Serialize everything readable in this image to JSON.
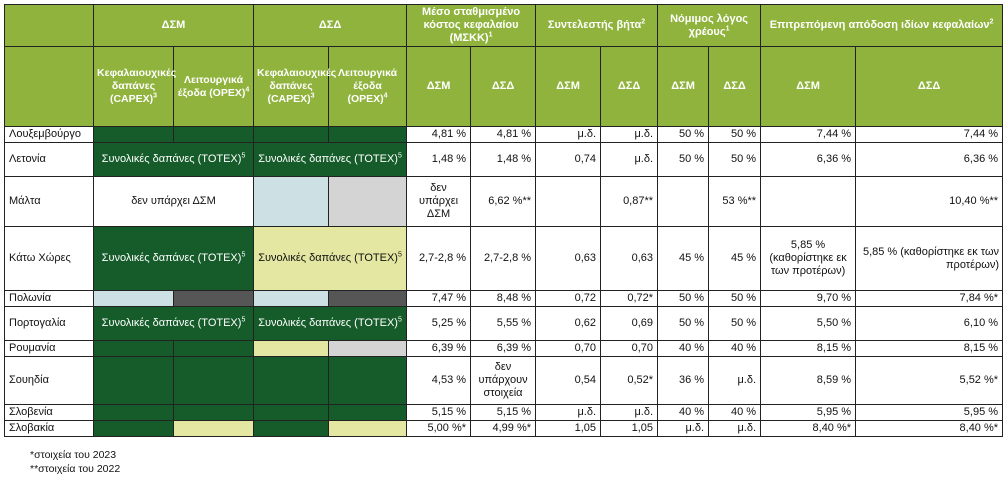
{
  "headers": {
    "dsm": "ΔΣΜ",
    "dsd": "ΔΣΔ",
    "wacc": "Μέσο σταθμισμένο κόστος κεφαλαίου (ΜΣΚΚ)",
    "wacc_sup": "1",
    "beta": "Συντελεστής βήτα",
    "beta_sup": "2",
    "gearing": "Νόμιμος λόγος χρέους",
    "gearing_sup": "1",
    "roe": "Επιτρεπόμενη απόδοση ιδίων κεφαλαίων",
    "roe_sup": "2",
    "capex": "Κεφαλαιουχικές δαπάνες (CAPEX)",
    "capex_sup": "3",
    "opex": "Λειτουργικά έξοδα (OPEX)",
    "opex_sup": "4",
    "sub_dsm": "ΔΣΜ",
    "sub_dsd": "ΔΣΔ"
  },
  "rows": [
    {
      "country": "Λουξεμβούργο",
      "wacc_dsm": "4,81 %",
      "wacc_dsd": "4,81 %",
      "beta_dsm": "μ.δ.",
      "beta_dsd": "μ.δ.",
      "gear_dsm": "50 %",
      "gear_dsd": "50 %",
      "roe_dsm": "7,44 %",
      "roe_dsd": "7,44 %"
    },
    {
      "country": "Λετονία",
      "totex_dsm": "Συνολικές δαπάνες (TOTEX)",
      "totex_dsd": "Συνολικές δαπάνες (TOTEX)",
      "wacc_dsm": "1,48 %",
      "wacc_dsd": "1,48 %",
      "beta_dsm": "0,74",
      "beta_dsd": "μ.δ.",
      "gear_dsm": "50 %",
      "gear_dsd": "50 %",
      "roe_dsm": "6,36 %",
      "roe_dsd": "6,36 %"
    },
    {
      "country": "Μάλτα",
      "no_dsm": "δεν υπάρχει ΔΣΜ",
      "wacc_dsm": "δεν υπάρχει ΔΣΜ",
      "wacc_dsd": "6,62 %**",
      "beta_dsm": "",
      "beta_dsd": "0,87**",
      "gear_dsm": "",
      "gear_dsd": "53 %**",
      "roe_dsm": "",
      "roe_dsd": "10,40 %**"
    },
    {
      "country": "Κάτω Χώρες",
      "totex_dsm": "Συνολικές δαπάνες (TOTEX)",
      "totex_dsd": "Συνολικές δαπάνες (TOTEX)",
      "wacc_dsm": "2,7-2,8 %",
      "wacc_dsd": "2,7-2,8 %",
      "beta_dsm": "0,63",
      "beta_dsd": "0,63",
      "gear_dsm": "45 %",
      "gear_dsd": "45 %",
      "roe_dsm": "5,85 % (καθορίστηκε εκ των προτέρων)",
      "roe_dsd": "5,85 % (καθορίστηκε εκ των προτέρων)"
    },
    {
      "country": "Πολωνία",
      "wacc_dsm": "7,47 %",
      "wacc_dsd": "8,48 %",
      "beta_dsm": "0,72",
      "beta_dsd": "0,72*",
      "gear_dsm": "50 %",
      "gear_dsd": "50 %",
      "roe_dsm": "9,70 %",
      "roe_dsd": "7,84 %*"
    },
    {
      "country": "Πορτογαλία",
      "totex_dsm": "Συνολικές δαπάνες (TOTEX)",
      "totex_dsd": "Συνολικές δαπάνες (TOTEX)",
      "wacc_dsm": "5,25 %",
      "wacc_dsd": "5,55 %",
      "beta_dsm": "0,62",
      "beta_dsd": "0,69",
      "gear_dsm": "50 %",
      "gear_dsd": "50 %",
      "roe_dsm": "5,50 %",
      "roe_dsd": "6,10 %"
    },
    {
      "country": "Ρουμανία",
      "wacc_dsm": "6,39 %",
      "wacc_dsd": "6,39 %",
      "beta_dsm": "0,70",
      "beta_dsd": "0,70",
      "gear_dsm": "40 %",
      "gear_dsd": "40 %",
      "roe_dsm": "8,15 %",
      "roe_dsd": "8,15 %"
    },
    {
      "country": "Σουηδία",
      "wacc_dsm": "4,53 %",
      "wacc_dsd": "δεν υπάρχουν στοιχεία",
      "beta_dsm": "0,54",
      "beta_dsd": "0,52*",
      "gear_dsm": "36 %",
      "gear_dsd": "μ.δ.",
      "roe_dsm": "8,59 %",
      "roe_dsd": "5,52 %*"
    },
    {
      "country": "Σλοβενία",
      "wacc_dsm": "5,15 %",
      "wacc_dsd": "5,15 %",
      "beta_dsm": "μ.δ.",
      "beta_dsd": "μ.δ.",
      "gear_dsm": "40 %",
      "gear_dsd": "40 %",
      "roe_dsm": "5,95 %",
      "roe_dsd": "5,95 %"
    },
    {
      "country": "Σλοβακία",
      "wacc_dsm": "5,00 %*",
      "wacc_dsd": "4,99 %*",
      "beta_dsm": "1,05",
      "beta_dsd": "1,05",
      "gear_dsm": "μ.δ.",
      "gear_dsd": "μ.δ.",
      "roe_dsm": "8,40 %*",
      "roe_dsd": "8,40 %*"
    }
  ],
  "totex_sup": "5",
  "notes": [
    "*στοιχεία του 2023",
    "**στοιχεία του 2022"
  ],
  "colors": {
    "header": "#8fb33c",
    "dark_green": "#155c2a",
    "light_blue": "#cde0e3",
    "light_grey": "#d4d4d4",
    "dark_grey": "#565656",
    "yellow": "#e4e7a2"
  }
}
